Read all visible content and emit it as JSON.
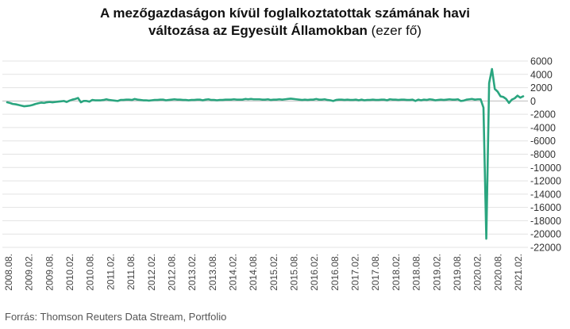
{
  "header": {
    "title_line1": "A mezőgazdaságon kívül foglalkoztatottak számának havi",
    "title_line2_bold": "változása az Egyesült Államokban",
    "title_line2_unit": "(ezer fő)"
  },
  "footer": {
    "source": "Forrás: Thomson Reuters Data Stream, Portfolio"
  },
  "chart_data": {
    "type": "line",
    "title": "A mezőgazdaságon kívül foglalkoztatottak számának havi változása az Egyesült Államokban (ezer fő)",
    "xlabel": "",
    "ylabel": "",
    "ylim": [
      -22000,
      6000
    ],
    "yticks": [
      6000,
      4000,
      2000,
      0,
      -2000,
      -4000,
      -6000,
      -8000,
      -10000,
      -12000,
      -14000,
      -16000,
      -18000,
      -20000,
      -22000
    ],
    "y_axis_side": "right",
    "grid": true,
    "legend": "none",
    "series_color": "#2aa57f",
    "x_tick_labels": [
      "2008.08.",
      "2009.02.",
      "2009.08.",
      "2010.02.",
      "2010.08.",
      "2011.02.",
      "2011.08.",
      "2012.02.",
      "2012.08.",
      "2013.02.",
      "2013.08.",
      "2014.02.",
      "2014.08.",
      "2015.02.",
      "2015.08.",
      "2016.02.",
      "2016.08.",
      "2017.02.",
      "2017.08.",
      "2018.02.",
      "2018.08.",
      "2019.02.",
      "2019.08.",
      "2020.02.",
      "2020.08.",
      "2021.02."
    ],
    "x_start": "2008.08.",
    "values": [
      -200,
      -300,
      -450,
      -500,
      -600,
      -700,
      -800,
      -750,
      -700,
      -600,
      -450,
      -350,
      -250,
      -300,
      -200,
      -150,
      -200,
      -150,
      -100,
      -50,
      0,
      -150,
      50,
      200,
      300,
      450,
      -200,
      0,
      0,
      -100,
      150,
      100,
      100,
      100,
      150,
      250,
      150,
      100,
      50,
      0,
      150,
      150,
      200,
      200,
      150,
      300,
      200,
      150,
      100,
      100,
      50,
      100,
      150,
      150,
      200,
      200,
      100,
      150,
      200,
      250,
      200,
      200,
      150,
      150,
      100,
      150,
      150,
      200,
      200,
      100,
      200,
      250,
      150,
      150,
      100,
      150,
      150,
      200,
      200,
      200,
      250,
      200,
      200,
      200,
      300,
      250,
      300,
      250,
      250,
      250,
      200,
      200,
      250,
      150,
      200,
      200,
      250,
      200,
      250,
      300,
      350,
      300,
      250,
      200,
      150,
      200,
      150,
      200,
      200,
      300,
      200,
      200,
      250,
      150,
      100,
      0,
      150,
      200,
      200,
      150,
      200,
      150,
      150,
      200,
      100,
      200,
      100,
      150,
      150,
      200,
      150,
      150,
      200,
      200,
      100,
      250,
      200,
      200,
      150,
      200,
      200,
      150,
      150,
      200,
      0,
      200,
      100,
      200,
      150,
      250,
      200,
      100,
      150,
      200,
      150,
      200,
      250,
      200,
      200,
      250,
      0,
      50,
      200,
      250,
      300,
      200,
      250,
      250,
      -1000,
      -20700,
      2700,
      4800,
      1800,
      1400,
      700,
      600,
      300,
      -300,
      200,
      400,
      800,
      500,
      700
    ]
  }
}
